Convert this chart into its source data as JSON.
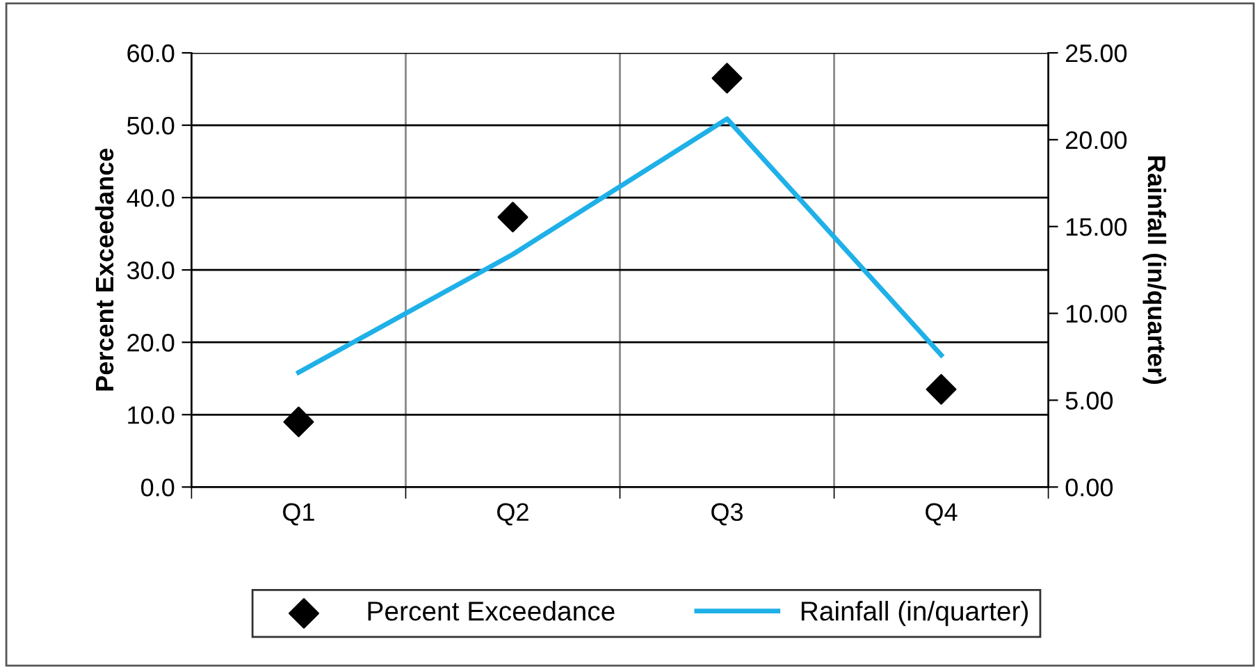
{
  "chart_data": {
    "type": "scatter",
    "categories": [
      "Q1",
      "Q2",
      "Q3",
      "Q4"
    ],
    "ylabel": "Percent Exceedance",
    "y2label": "Rainfall (in/quarter)",
    "ylim": [
      0,
      60
    ],
    "yticks": [
      {
        "value": 0,
        "label": "0.0"
      },
      {
        "value": 10,
        "label": "10.0"
      },
      {
        "value": 20,
        "label": "20.0"
      },
      {
        "value": 30,
        "label": "30.0"
      },
      {
        "value": 40,
        "label": "40.0"
      },
      {
        "value": 50,
        "label": "50.0"
      },
      {
        "value": 60,
        "label": "60.0"
      }
    ],
    "y2lim": [
      0,
      25
    ],
    "y2ticks": [
      {
        "value": 0,
        "label": "0.00"
      },
      {
        "value": 5,
        "label": "5.00"
      },
      {
        "value": 10,
        "label": "10.00"
      },
      {
        "value": 15,
        "label": "15.00"
      },
      {
        "value": 20,
        "label": "20.00"
      },
      {
        "value": 25,
        "label": "25.00"
      }
    ],
    "grid": true,
    "legend": "bottom",
    "series": [
      {
        "name": "Percent Exceedance",
        "marker": "diamond",
        "color": "#000000",
        "values": [
          9.0,
          37.3,
          56.5,
          13.5
        ]
      },
      {
        "name": "Rainfall (in/quarter)",
        "type": "line",
        "axis": "y2",
        "marker": "none",
        "color": "#1fb0e8",
        "values": [
          6.6,
          13.4,
          21.2,
          7.6
        ]
      }
    ]
  }
}
